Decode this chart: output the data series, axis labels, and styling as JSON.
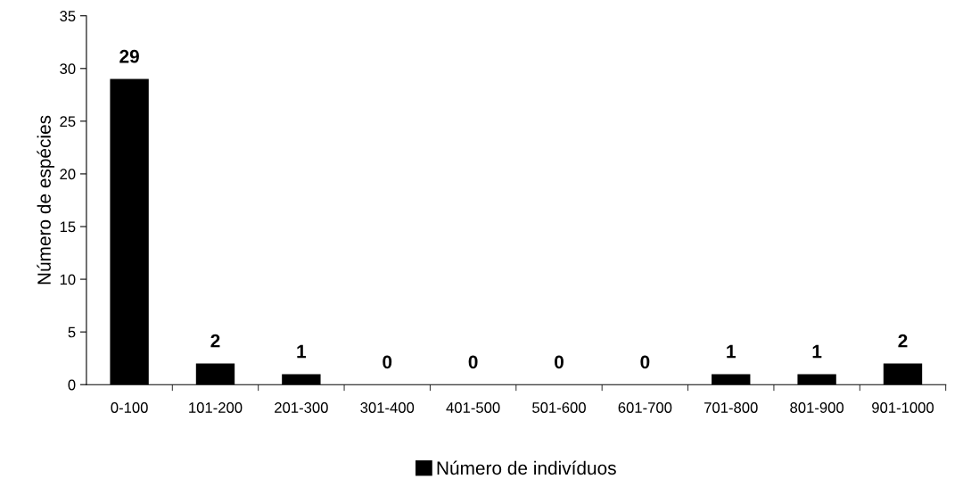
{
  "chart_data": {
    "type": "bar",
    "ylabel": "Número de espécies",
    "categories": [
      "0-100",
      "101-200",
      "201-300",
      "301-400",
      "401-500",
      "501-600",
      "601-700",
      "701-800",
      "801-900",
      "901-1000"
    ],
    "series": [
      {
        "name": "Número de indivíduos",
        "color": "#000000",
        "values": [
          29,
          2,
          1,
          0,
          0,
          0,
          0,
          1,
          1,
          2
        ]
      }
    ],
    "ylim": [
      0,
      35
    ],
    "yticks": [
      0,
      5,
      10,
      15,
      20,
      25,
      30,
      35
    ],
    "data_labels": true,
    "legend": "bottom",
    "grid": false
  }
}
